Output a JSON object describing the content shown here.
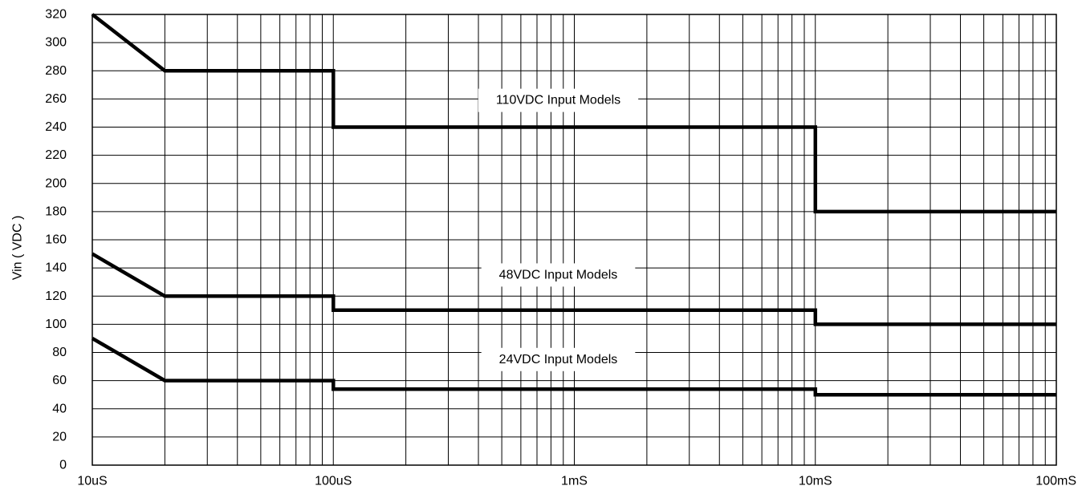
{
  "chart_data": {
    "type": "line",
    "title": "",
    "xlabel": "",
    "ylabel": "Vin ( VDC )",
    "x_scale": "log",
    "x_unit": "seconds",
    "xlim": [
      1e-05,
      0.1
    ],
    "ylim": [
      0,
      320
    ],
    "grid": true,
    "x_ticks": [
      {
        "value": 1e-05,
        "label": "10uS"
      },
      {
        "value": 0.0001,
        "label": "100uS"
      },
      {
        "value": 0.001,
        "label": "1mS"
      },
      {
        "value": 0.01,
        "label": "10mS"
      },
      {
        "value": 0.1,
        "label": "100mS"
      }
    ],
    "y_ticks": [
      0,
      20,
      40,
      60,
      80,
      100,
      120,
      140,
      160,
      180,
      200,
      220,
      240,
      260,
      280,
      300,
      320
    ],
    "series": [
      {
        "name": "110VDC Input Models",
        "points": [
          [
            1e-05,
            320
          ],
          [
            2e-05,
            280
          ],
          [
            0.0001,
            280
          ],
          [
            0.0001,
            240
          ],
          [
            0.01,
            240
          ],
          [
            0.01,
            180
          ],
          [
            0.1,
            180
          ]
        ]
      },
      {
        "name": "48VDC Input Models",
        "points": [
          [
            1e-05,
            150
          ],
          [
            2e-05,
            120
          ],
          [
            0.0001,
            120
          ],
          [
            0.0001,
            110
          ],
          [
            0.01,
            110
          ],
          [
            0.01,
            100
          ],
          [
            0.1,
            100
          ]
        ]
      },
      {
        "name": "24VDC Input Models",
        "points": [
          [
            1e-05,
            90
          ],
          [
            2e-05,
            60
          ],
          [
            0.0001,
            60
          ],
          [
            0.0001,
            54
          ],
          [
            0.01,
            54
          ],
          [
            0.01,
            50
          ],
          [
            0.1,
            50
          ]
        ]
      }
    ]
  }
}
